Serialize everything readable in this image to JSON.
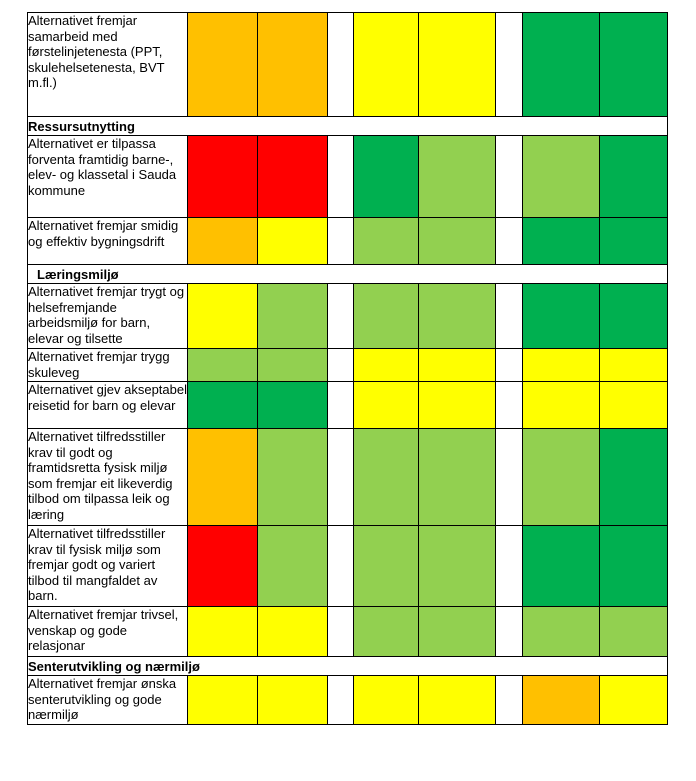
{
  "colors": {
    "orange": "#FFC000",
    "red": "#FF0000",
    "yellow": "#FFFF00",
    "lightgreen": "#92D050",
    "green": "#00B050"
  },
  "rows": [
    {
      "type": "criterion",
      "text": "Alternativet fremjar samarbeid med førstelinjetenesta (PPT, skulehelsetenesta, BVT m.fl.)",
      "cells": [
        "orange",
        "orange",
        "yellow",
        "yellow",
        "green",
        "green"
      ]
    },
    {
      "type": "header",
      "text": "Ressursutnytting"
    },
    {
      "type": "criterion",
      "text": "Alternativet er tilpassa forventa framtidig barne-, elev- og klassetal i Sauda kommune",
      "cells": [
        "red",
        "red",
        "green",
        "lightgreen",
        "lightgreen",
        "green"
      ]
    },
    {
      "type": "criterion",
      "text": "Alternativet fremjar smidig og effektiv bygningsdrift",
      "cells": [
        "orange",
        "yellow",
        "lightgreen",
        "lightgreen",
        "green",
        "green"
      ]
    },
    {
      "type": "header",
      "text": "Læringsmiljø",
      "indent": true
    },
    {
      "type": "criterion",
      "text": "Alternativet fremjar trygt og helsefremjande arbeidsmiljø for barn, elevar og tilsette",
      "cells": [
        "yellow",
        "lightgreen",
        "lightgreen",
        "lightgreen",
        "green",
        "green"
      ]
    },
    {
      "type": "criterion",
      "text": "Alternativet fremjar trygg skuleveg",
      "cells": [
        "lightgreen",
        "lightgreen",
        "yellow",
        "yellow",
        "yellow",
        "yellow"
      ]
    },
    {
      "type": "criterion",
      "text": "Alternativet gjev akseptabel reisetid for barn og elevar",
      "cells": [
        "green",
        "green",
        "yellow",
        "yellow",
        "yellow",
        "yellow"
      ]
    },
    {
      "type": "criterion",
      "text": "Alternativet tilfredsstiller krav til godt og framtidsretta fysisk miljø som fremjar eit likeverdig tilbod om tilpassa leik og læring",
      "cells": [
        "orange",
        "lightgreen",
        "lightgreen",
        "lightgreen",
        "lightgreen",
        "green"
      ]
    },
    {
      "type": "criterion",
      "text": "Alternativet tilfredsstiller krav til fysisk miljø som fremjar godt og variert tilbod til mangfaldet av barn.",
      "cells": [
        "red",
        "lightgreen",
        "lightgreen",
        "lightgreen",
        "green",
        "green"
      ]
    },
    {
      "type": "criterion",
      "text": "Alternativet fremjar trivsel, venskap og gode relasjonar",
      "cells": [
        "yellow",
        "yellow",
        "lightgreen",
        "lightgreen",
        "lightgreen",
        "lightgreen"
      ]
    },
    {
      "type": "header",
      "text": "Senterutvikling og nærmiljø"
    },
    {
      "type": "criterion",
      "text": "Alternativet fremjar ønska senterutvikling og gode nærmiljø",
      "cells": [
        "yellow",
        "yellow",
        "yellow",
        "yellow",
        "orange",
        "yellow"
      ]
    }
  ]
}
